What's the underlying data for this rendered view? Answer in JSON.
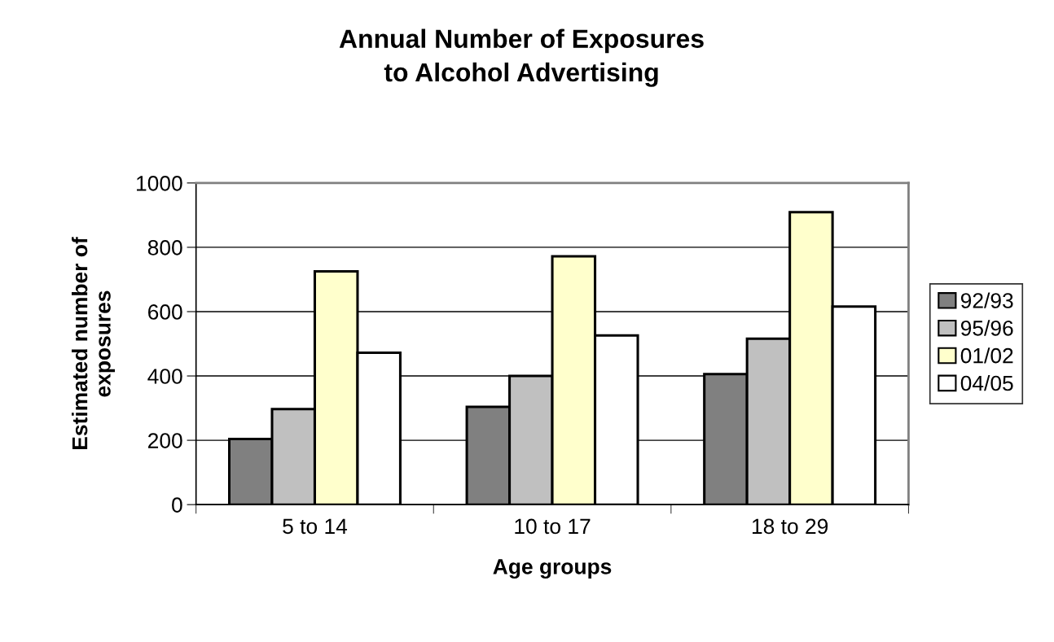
{
  "chart_data": {
    "type": "bar",
    "title": "Annual Number of Exposures\nto Alcohol Advertising",
    "xlabel": "Age groups",
    "ylabel": "Estimated number of\nexposures",
    "categories": [
      "5 to 14",
      "10 to 17",
      "18 to 29"
    ],
    "series": [
      {
        "name": "92/93",
        "color": "#808080",
        "values": [
          204,
          304,
          406
        ]
      },
      {
        "name": "95/96",
        "color": "#c0c0c0",
        "values": [
          297,
          400,
          516
        ]
      },
      {
        "name": "01/02",
        "color": "#ffffcc",
        "values": [
          725,
          772,
          909
        ]
      },
      {
        "name": "04/05",
        "color": "#ffffff",
        "values": [
          472,
          526,
          616
        ]
      }
    ],
    "ylim": [
      0,
      1000
    ],
    "yticks": [
      0,
      200,
      400,
      600,
      800,
      1000
    ],
    "grid": "y",
    "legend": "right"
  }
}
